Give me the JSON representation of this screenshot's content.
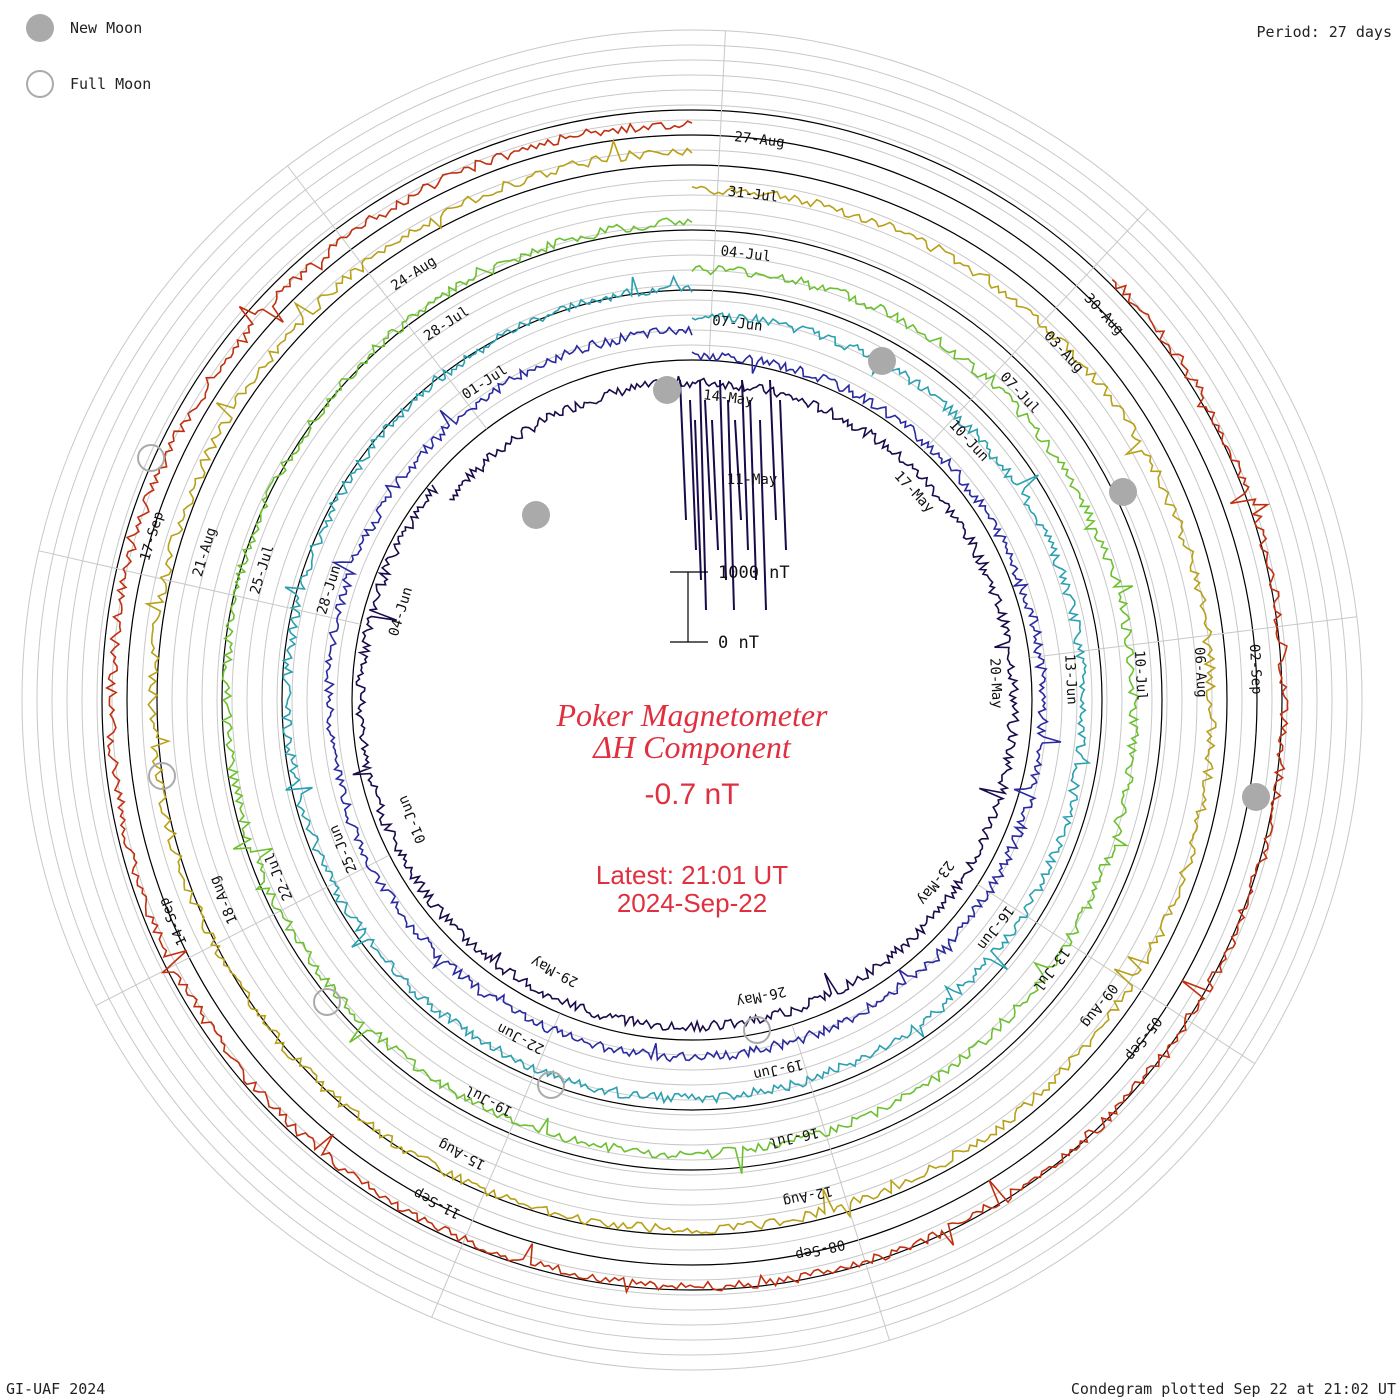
{
  "legend": {
    "new_moon_label": "New Moon",
    "full_moon_label": "Full Moon"
  },
  "period_label": "Period: 27 days",
  "footer": {
    "left": "GI-UAF 2024",
    "right": "Condegram plotted Sep 22 at 21:02 UT"
  },
  "chart_data": {
    "type": "line",
    "subtype": "condegram-spiral",
    "title": "Poker Magnetometer",
    "subtitle": "ΔH Component",
    "current_value": "-0.7 nT",
    "latest_time": "Latest: 21:01 UT",
    "latest_date": "2024-Sep-22",
    "scale_labels": [
      "1000 nT",
      "0 nT"
    ],
    "period_days": 27,
    "revolutions": [
      {
        "index": 0,
        "color": "#1a0a4a",
        "date_labels": [
          "14-May",
          "17-May",
          "20-May",
          "23-May",
          "26-May",
          "29-May",
          "01-Jun",
          "04-Jun"
        ]
      },
      {
        "index": 1,
        "color": "#2a2aa0",
        "date_labels": [
          "07-Jun",
          "10-Jun",
          "13-Jun",
          "16-Jun",
          "19-Jun",
          "22-Jun",
          "25-Jun",
          "28-Jun",
          "01-Jul"
        ]
      },
      {
        "index": 2,
        "color": "#2aa0b0",
        "date_labels": [
          "04-Jul",
          "07-Jul",
          "10-Jul",
          "13-Jul",
          "16-Jul",
          "19-Jul",
          "22-Jul",
          "25-Jul",
          "28-Jul"
        ]
      },
      {
        "index": 3,
        "color": "#6cc030",
        "date_labels": [
          "31-Jul",
          "03-Aug",
          "06-Aug",
          "09-Aug",
          "12-Aug",
          "15-Aug",
          "18-Aug",
          "21-Aug",
          "24-Aug"
        ]
      },
      {
        "index": 4,
        "color": "#b8a018",
        "date_labels": [
          "27-Aug",
          "30-Aug",
          "02-Sep",
          "05-Sep",
          "08-Sep",
          "11-Sep",
          "14-Sep",
          "17-Sep"
        ]
      },
      {
        "index": 5,
        "color": "#c03010",
        "date_labels": []
      }
    ],
    "new_moon_dates": [
      "06-May",
      "06-Jun",
      "05-Jul",
      "04-Aug",
      "03-Sep"
    ],
    "full_moon_dates": [
      "23-May",
      "22-Jun",
      "21-Jul",
      "19-Aug",
      "18-Sep"
    ],
    "extra_date_labels": [
      "11-May"
    ]
  }
}
